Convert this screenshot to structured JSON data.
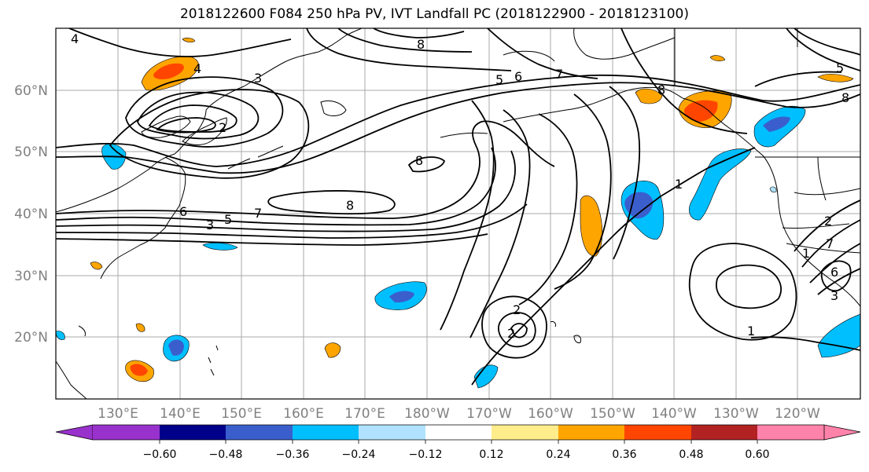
{
  "title": "2018122600 F084 250 hPa PV, IVT Landfall PC (2018122900 - 2018123100)",
  "map": {
    "lat_labels": [
      "60°N",
      "50°N",
      "40°N",
      "30°N",
      "20°N"
    ],
    "lon_labels": [
      "130°E",
      "140°E",
      "150°E",
      "160°E",
      "170°E",
      "180°W",
      "170°W",
      "160°W",
      "150°W",
      "140°W",
      "130°W",
      "120°W"
    ],
    "contour_labels": [
      "4",
      "4",
      "3",
      "2",
      "8",
      "8",
      "8",
      "7",
      "6",
      "5",
      "5",
      "6",
      "7",
      "8",
      "8",
      "1",
      "1",
      "2",
      "2",
      "2",
      "5",
      "6",
      "7",
      "3",
      "3",
      "1"
    ]
  },
  "colorbar": {
    "colors": [
      "#9932cc",
      "#00008b",
      "#3a5fcd",
      "#00bfff",
      "#b0e2ff",
      "#ffffff",
      "#ffec8b",
      "#ffa500",
      "#ff4500",
      "#b22222",
      "#ff82ab"
    ],
    "tick_labels": [
      "−0.60",
      "−0.48",
      "−0.36",
      "−0.24",
      "−0.12",
      "0.12",
      "0.24",
      "0.36",
      "0.48",
      "0.60"
    ]
  }
}
